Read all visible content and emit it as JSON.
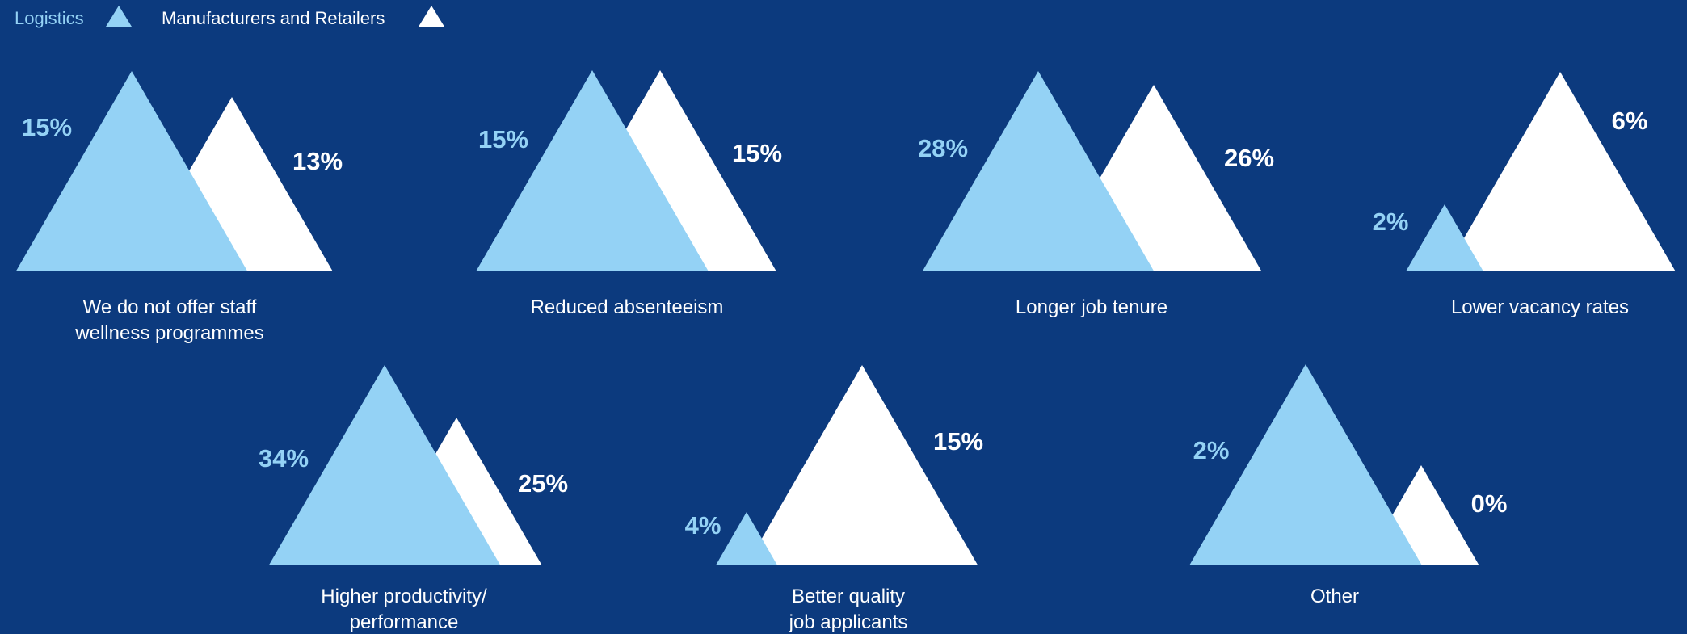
{
  "colors": {
    "background": "#0c3a7e",
    "logistics": "#94d2f5",
    "manufacturers": "#ffffff",
    "category_text": "#ffffff"
  },
  "chart_data": {
    "type": "bar",
    "mark": "triangle",
    "legend": {
      "placement": "top-left",
      "entries": [
        {
          "name": "Logistics",
          "color": "#94d2f5",
          "icon": "triangle-icon"
        },
        {
          "name": "Manufacturers and Retailers",
          "color": "#ffffff",
          "icon": "triangle-icon"
        }
      ]
    },
    "series": [
      {
        "name": "Logistics",
        "values": [
          15,
          15,
          28,
          2,
          34,
          4,
          2
        ]
      },
      {
        "name": "Manufacturers and Retailers",
        "values": [
          13,
          15,
          26,
          6,
          25,
          15,
          0
        ]
      }
    ],
    "categories": [
      {
        "lines": [
          "We do not offer staff",
          "wellness programmes"
        ],
        "labels": {
          "logistics": "15%",
          "manufacturers": "13%"
        }
      },
      {
        "lines": [
          "Reduced absenteeism"
        ],
        "labels": {
          "logistics": "15%",
          "manufacturers": "15%"
        }
      },
      {
        "lines": [
          "Longer job tenure"
        ],
        "labels": {
          "logistics": "28%",
          "manufacturers": "26%"
        }
      },
      {
        "lines": [
          "Lower vacancy rates"
        ],
        "labels": {
          "logistics": "2%",
          "manufacturers": "6%"
        }
      },
      {
        "lines": [
          "Higher productivity/",
          "performance"
        ],
        "labels": {
          "logistics": "34%",
          "manufacturers": "25%"
        }
      },
      {
        "lines": [
          "Better quality",
          "job applicants"
        ],
        "labels": {
          "logistics": "4%",
          "manufacturers": "15%"
        }
      },
      {
        "lines": [
          "Other"
        ],
        "labels": {
          "logistics": "2%",
          "manufacturers": "0%"
        }
      }
    ]
  }
}
